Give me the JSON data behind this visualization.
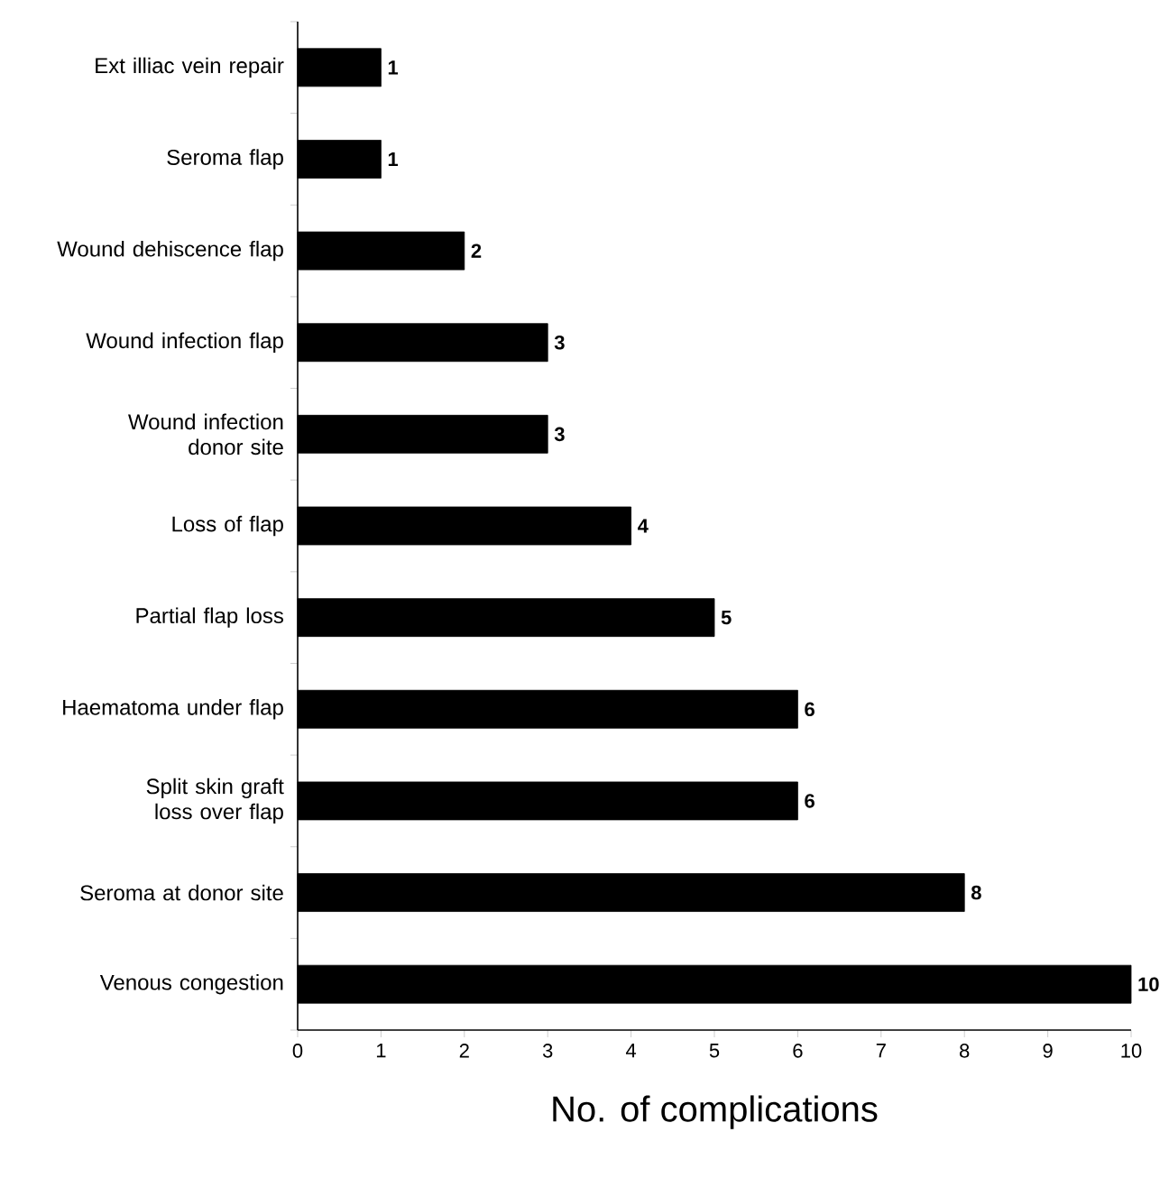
{
  "chart_data": {
    "type": "bar",
    "orientation": "horizontal",
    "xlabel": "No. of complications",
    "categories": [
      "Ext illiac vein repair",
      "Seroma flap",
      "Wound dehiscence flap",
      "Wound infection flap",
      "Wound infection donor site",
      "Loss of flap",
      "Partial flap loss",
      "Haematoma under flap",
      "Split skin graft loss over flap",
      "Seroma at donor site",
      "Venous congestion"
    ],
    "values": [
      1,
      1,
      2,
      3,
      3,
      4,
      5,
      6,
      6,
      8,
      10
    ],
    "color": "#000000",
    "xlim": [
      0,
      10
    ],
    "xticks": [
      0,
      1,
      2,
      3,
      4,
      5,
      6,
      7,
      8,
      9,
      10
    ],
    "data_labels": true
  }
}
